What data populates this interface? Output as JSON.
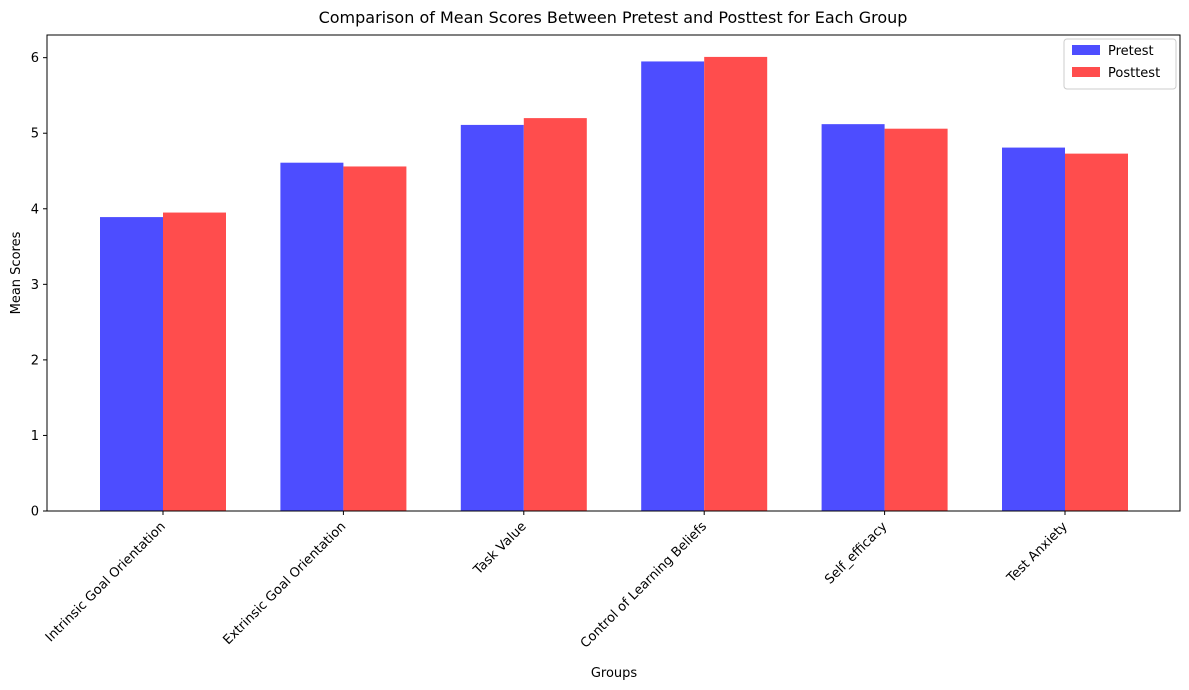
{
  "chart_data": {
    "type": "bar",
    "title": "Comparison of Mean Scores Between Pretest and Posttest for Each Group",
    "xlabel": "Groups",
    "ylabel": "Mean Scores",
    "categories": [
      "Intrinsic Goal Orientation",
      "Extrinsic Goal Orientation",
      "Task Value",
      "Control of Learning Beliefs",
      "Self_efficacy",
      "Test Anxiety"
    ],
    "series": [
      {
        "name": "Pretest",
        "values": [
          3.89,
          4.61,
          5.11,
          5.95,
          5.12,
          4.81
        ],
        "color": "#4d4dff"
      },
      {
        "name": "Posttest",
        "values": [
          3.95,
          4.56,
          5.2,
          6.01,
          5.06,
          4.73
        ],
        "color": "#ff4d4d"
      }
    ],
    "ylim": [
      0,
      6.3
    ],
    "yticks": [
      0,
      1,
      2,
      3,
      4,
      5,
      6
    ],
    "grid": false,
    "legend": "top-right"
  }
}
